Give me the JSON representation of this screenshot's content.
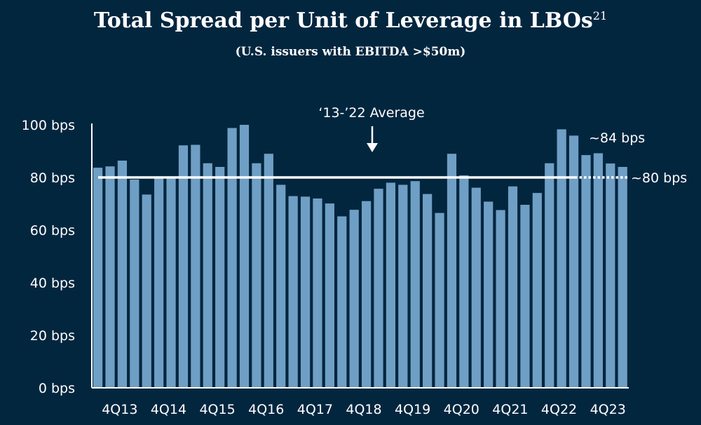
{
  "chart_data": {
    "type": "bar",
    "title": "Total Spread per Unit of Leverage in LBOs",
    "title_superscript": "21",
    "subtitle": "(U.S. issuers with EBITDA >$50m)",
    "xlabel": "",
    "ylabel": "",
    "ylim": [
      0,
      100
    ],
    "y_ticks": [
      0,
      20,
      40,
      60,
      80,
      100
    ],
    "y_tick_labels": [
      "0 bps",
      "20 bps",
      "40 bps",
      "60 bps",
      "80 bps",
      "100 bps"
    ],
    "categories": [
      "1Q13",
      "2Q13",
      "3Q13",
      "4Q13",
      "1Q14",
      "2Q14",
      "3Q14",
      "4Q14",
      "1Q15",
      "2Q15",
      "3Q15",
      "4Q15",
      "1Q16",
      "2Q16",
      "3Q16",
      "4Q16",
      "1Q17",
      "2Q17",
      "3Q17",
      "4Q17",
      "1Q18",
      "2Q18",
      "3Q18",
      "4Q18",
      "1Q19",
      "2Q19",
      "3Q19",
      "4Q19",
      "1Q20",
      "2Q20",
      "3Q20",
      "4Q20",
      "1Q21",
      "2Q21",
      "3Q21",
      "4Q21",
      "1Q22",
      "2Q22",
      "3Q22",
      "4Q22",
      "1Q23",
      "2Q23",
      "3Q23",
      "4Q23"
    ],
    "x_tick_labels": [
      "4Q13",
      "4Q14",
      "4Q15",
      "4Q16",
      "4Q17",
      "4Q18",
      "4Q19",
      "4Q20",
      "4Q21",
      "4Q22",
      "4Q23"
    ],
    "values": [
      83.7,
      84.2,
      86.4,
      79.2,
      73.5,
      80,
      80,
      92.2,
      92.4,
      85.4,
      84,
      98.8,
      100,
      85.4,
      89,
      77.2,
      72.9,
      72.7,
      72,
      70.1,
      65.2,
      67.7,
      71,
      75.7,
      78,
      77.2,
      78.6,
      73.7,
      66.5,
      89,
      80.8,
      76.1,
      70.8,
      67.6,
      76.6,
      69.6,
      74.1,
      85.4,
      98.3,
      95.9,
      88.5,
      89.2,
      85.3,
      84
    ],
    "average_line": {
      "value": 80,
      "label": "‘13-’22 Average",
      "end_label": "~80 bps"
    },
    "recent_label": "~84 bps",
    "colors": {
      "background": "#03263f",
      "bar": "#6f9fc4",
      "text": "#ffffff"
    },
    "grid": false
  }
}
